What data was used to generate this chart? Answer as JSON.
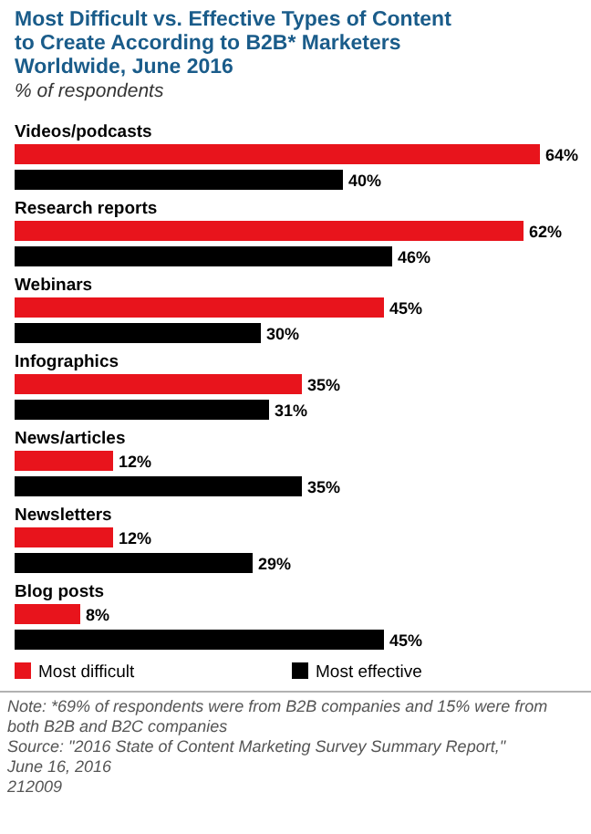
{
  "chart_data": {
    "type": "bar",
    "orientation": "horizontal",
    "title": "Most Difficult vs. Effective Types of Content to Create According to B2B* Marketers Worldwide, June 2016",
    "subtitle": "% of respondents",
    "categories": [
      "Videos/podcasts",
      "Research reports",
      "Webinars",
      "Infographics",
      "News/articles",
      "Newsletters",
      "Blog posts"
    ],
    "series": [
      {
        "name": "Most difficult",
        "color": "#e8141c",
        "values": [
          64,
          62,
          45,
          35,
          12,
          12,
          8
        ],
        "value_labels": [
          "64%",
          "62%",
          "45%",
          "35%",
          "12%",
          "12%",
          "8%"
        ]
      },
      {
        "name": "Most effective",
        "color": "#000000",
        "values": [
          40,
          46,
          30,
          31,
          35,
          29,
          45
        ],
        "value_labels": [
          "40%",
          "46%",
          "30%",
          "31%",
          "35%",
          "29%",
          "45%"
        ]
      }
    ],
    "legend": "bottom",
    "annotations": [
      "Note: *69% of respondents were from B2B companies and 15% were from both B2B and B2C companies",
      "Source: \"2016 State of Content Marketing Survey Summary Report,\" June 16, 2016",
      "212009"
    ]
  }
}
